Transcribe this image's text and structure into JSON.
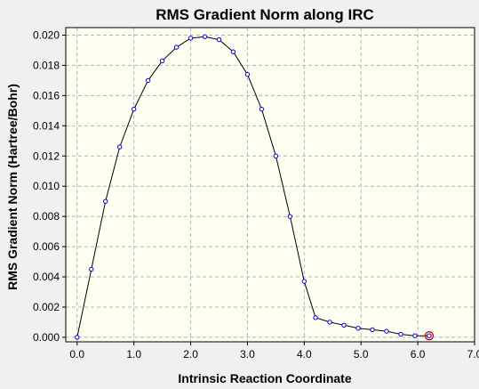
{
  "chart_data": {
    "type": "line",
    "title": "RMS Gradient Norm along IRC",
    "xlabel": "Intrinsic Reaction Coordinate",
    "ylabel": "RMS Gradient Norm (Hartree/Bohr)",
    "xlim": [
      -0.2,
      7.0
    ],
    "ylim": [
      -0.0003,
      0.0205
    ],
    "xticks": [
      0.0,
      1.0,
      2.0,
      3.0,
      4.0,
      5.0,
      6.0,
      7.0
    ],
    "xtick_labels": [
      "0.0",
      "1.0",
      "2.0",
      "3.0",
      "4.0",
      "5.0",
      "6.0",
      "7.0"
    ],
    "yticks": [
      0.0,
      0.002,
      0.004,
      0.006,
      0.008,
      0.01,
      0.012,
      0.014,
      0.016,
      0.018,
      0.02
    ],
    "ytick_labels": [
      "0.000",
      "0.002",
      "0.004",
      "0.006",
      "0.008",
      "0.010",
      "0.012",
      "0.014",
      "0.016",
      "0.018",
      "0.020"
    ],
    "grid": true,
    "colors": {
      "plot_background": "#fffff2",
      "line": "#000000",
      "marker": "#0000cc",
      "highlight": "#cc0000",
      "grid": "#b4b4b4"
    },
    "series": [
      {
        "x": [
          0.0,
          0.25,
          0.5,
          0.75,
          1.0,
          1.25,
          1.5,
          1.75,
          2.0,
          2.25,
          2.5,
          2.75,
          3.0,
          3.25,
          3.5,
          3.75,
          4.0,
          4.2,
          4.45,
          4.7,
          4.95,
          5.2,
          5.45,
          5.7,
          5.95,
          6.2
        ],
        "y": [
          0.0,
          0.0045,
          0.009,
          0.0126,
          0.0151,
          0.017,
          0.0183,
          0.0192,
          0.0198,
          0.0199,
          0.0197,
          0.0189,
          0.0174,
          0.0151,
          0.012,
          0.008,
          0.0037,
          0.0013,
          0.001,
          0.0008,
          0.0006,
          0.0005,
          0.0004,
          0.0002,
          0.0001,
          0.0001
        ]
      }
    ],
    "highlight_point": {
      "x": 6.2,
      "y": 0.0001
    }
  }
}
